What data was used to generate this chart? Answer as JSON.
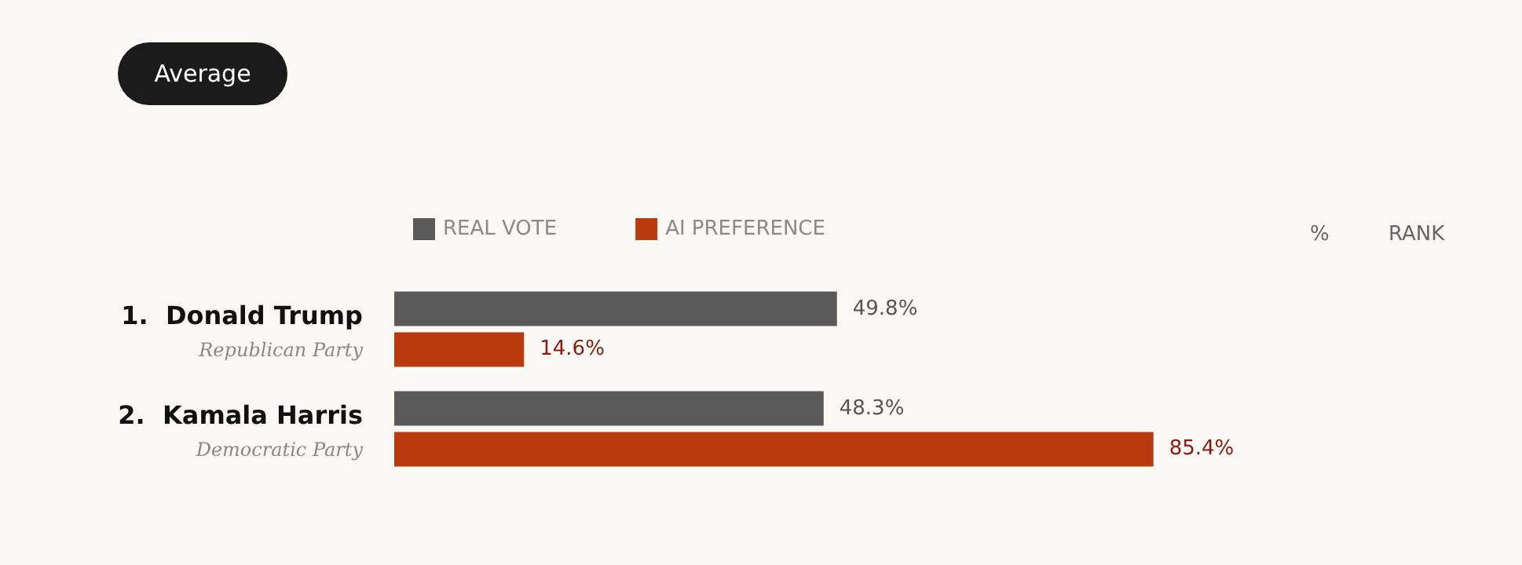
{
  "chart_data": {
    "type": "bar",
    "orientation": "horizontal",
    "categories": [
      "1.  Donald Trump\nRepublican Party",
      "2.  Kamala Harris\nDemocratic Party"
    ],
    "series": [
      {
        "name": "REAL VOTE",
        "color": "#5a5a5a",
        "values": [
          49.8,
          48.3
        ],
        "value_labels": [
          "49.8%",
          "48.3%"
        ]
      },
      {
        "name": "AI PREFERENCE",
        "color": "#b83a0e",
        "values": [
          14.6,
          85.4
        ],
        "value_labels": [
          "14.6%",
          "85.4%"
        ]
      }
    ],
    "legend": "top left",
    "grid": false,
    "annotations": [
      "Average",
      "%",
      "RANK"
    ]
  }
}
